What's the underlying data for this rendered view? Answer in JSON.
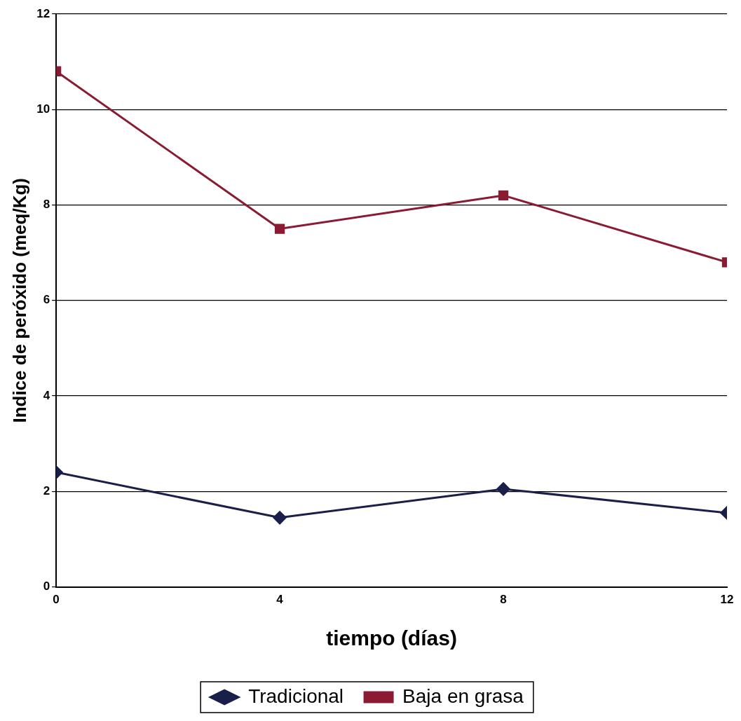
{
  "chart_data": {
    "type": "line",
    "xlabel": "tiempo (días)",
    "ylabel": "Indice de peróxido (meq/Kg)",
    "x": [
      0,
      4,
      8,
      12
    ],
    "series": [
      {
        "name": "Tradicional",
        "color": "#1a1f4a",
        "marker": "diamond",
        "values": [
          2.4,
          1.45,
          2.05,
          1.55
        ]
      },
      {
        "name": "Baja en grasa",
        "color": "#8b1a33",
        "marker": "square",
        "values": [
          10.8,
          7.5,
          8.2,
          6.8
        ]
      }
    ],
    "xlim": [
      0,
      12
    ],
    "xticks": [
      0,
      4,
      8,
      12
    ],
    "ylim": [
      0,
      12
    ],
    "yticks": [
      0,
      2,
      4,
      6,
      8,
      10,
      12
    ],
    "grid": "y",
    "legend": "bottom",
    "line_style": "solid"
  }
}
